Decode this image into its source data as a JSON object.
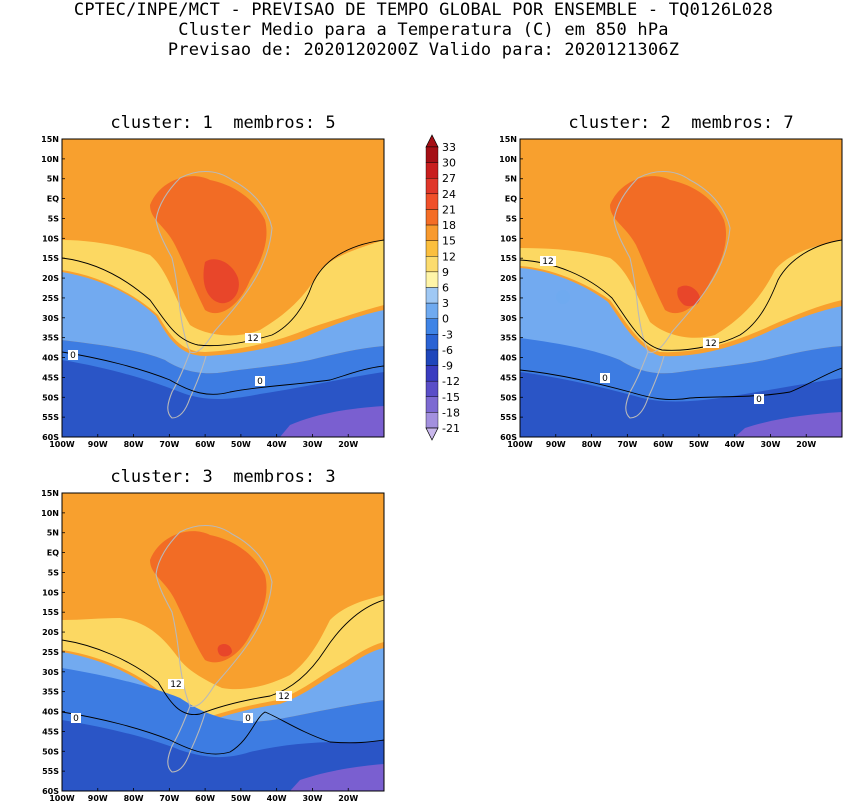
{
  "header": {
    "line1": "CPTEC/INPE/MCT - PREVISAO DE TEMPO GLOBAL POR ENSEMBLE - TQ0126L028",
    "line2": "Cluster Medio para a Temperatura (C) em 850 hPa",
    "line3": "Previsao de: 2020120200Z   Valido para: 2020121306Z"
  },
  "axes": {
    "lat_labels": [
      "15N",
      "10N",
      "5N",
      "EQ",
      "5S",
      "10S",
      "15S",
      "20S",
      "25S",
      "30S",
      "35S",
      "40S",
      "45S",
      "50S",
      "55S",
      "60S"
    ],
    "lon_labels": [
      "100W",
      "90W",
      "80W",
      "70W",
      "60W",
      "50W",
      "40W",
      "30W",
      "20W"
    ]
  },
  "panels": [
    {
      "title": "cluster: 1  membros: 5",
      "contour_labels": [
        "12",
        "0",
        "0"
      ]
    },
    {
      "title": "cluster: 2  membros: 7",
      "contour_labels": [
        "12",
        "12",
        "0",
        "0"
      ]
    },
    {
      "title": "cluster: 3  membros: 3",
      "contour_labels": [
        "12",
        "12",
        "0",
        "0"
      ]
    }
  ],
  "colorbar": {
    "labels": [
      "33",
      "30",
      "27",
      "24",
      "21",
      "18",
      "15",
      "12",
      "9",
      "6",
      "3",
      "0",
      "-3",
      "-6",
      "-9",
      "-12",
      "-15",
      "-18",
      "-21"
    ],
    "colors": [
      "#a50f15",
      "#c81e1e",
      "#e0372a",
      "#f0502a",
      "#f46d26",
      "#f89a2e",
      "#fbbf3e",
      "#fcdc6e",
      "#fff5a8",
      "#9fc8f4",
      "#6faaf0",
      "#3f84e6",
      "#2a63d4",
      "#1f46bb",
      "#3a3cc0",
      "#5a4ec8",
      "#7d6ad2",
      "#a390de",
      "#c9b8ec"
    ]
  },
  "colors": {
    "tropical_warm": "#f8a02e",
    "continental_hot": "#f26c25",
    "hot_core": "#e8462a",
    "mid_yellow": "#fcd862",
    "cool_blue": "#72aaf0",
    "cold_blue": "#3d7ce2",
    "deep_blue": "#2a55c6",
    "polar_violet": "#7a5fd0",
    "land_outline": "#b9b9b9",
    "contour_line": "#000000"
  }
}
